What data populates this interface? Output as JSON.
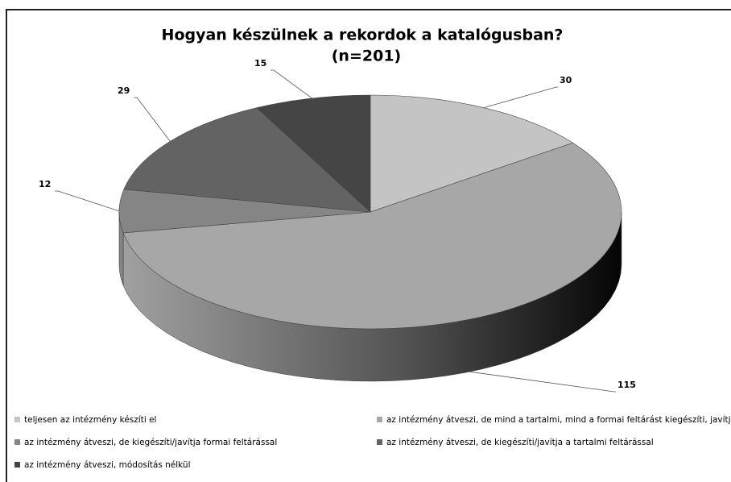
{
  "chart_data": {
    "type": "pie3d",
    "title": "Hogyan készülnek a rekordok a katalógusban?",
    "subtitle": "(n=201)",
    "categories": [
      "teljesen az intézmény készíti el",
      "az intézmény átveszi,  de mind a tartalmi, mind a formai feltárást kiegészíti, javítja",
      "az intézmény átveszi,  de kiegészíti/javítja formai feltárással",
      "az intézmény átveszi, de kiegészíti/javítja a tartalmi feltárással",
      "az intézmény átveszi,  módosítás nélkül"
    ],
    "values": [
      30,
      115,
      12,
      29,
      15
    ],
    "colors": [
      "#c4c4c4",
      "#a7a7a7",
      "#858585",
      "#636363",
      "#454545"
    ],
    "legend": "bottom"
  }
}
